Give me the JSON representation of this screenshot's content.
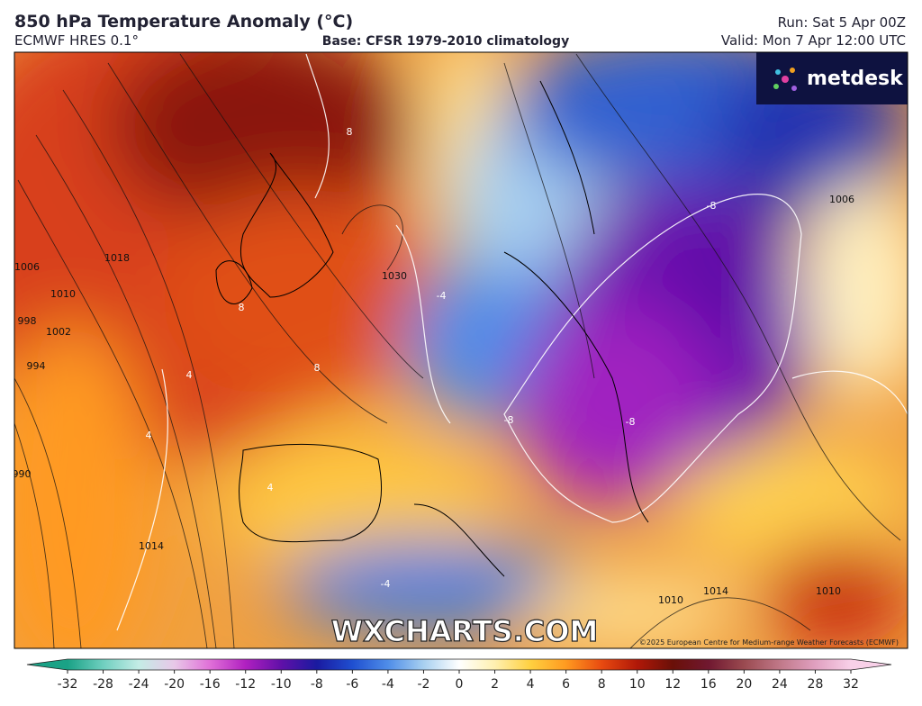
{
  "header": {
    "title": "850 hPa Temperature Anomaly (°C)",
    "model": "ECMWF HRES 0.1°",
    "base": "Base: CFSR 1979-2010 climatology",
    "run": "Run: Sat 5 Apr 00Z",
    "valid": "Valid: Mon 7 Apr 12:00 UTC"
  },
  "logo": "metdesk",
  "watermark": "WXCHARTS.COM",
  "copyright": "©2025 European Centre for Medium-range Weather Forecasts (ECMWF)",
  "contour_labels": [
    "1006",
    "1010",
    "1018",
    "998",
    "1002",
    "994",
    "990",
    "1014",
    "1030",
    "1006",
    "1014",
    "1010",
    "1010",
    "8",
    "8",
    "8",
    "4",
    "4",
    "4",
    "-4",
    "-4",
    "-8",
    "-8",
    "-8"
  ],
  "colorbar": {
    "ticks": [
      -32,
      -28,
      -24,
      -20,
      -16,
      -12,
      -10,
      -8,
      -6,
      -4,
      -2,
      0,
      2,
      4,
      6,
      8,
      10,
      12,
      16,
      20,
      24,
      28,
      32
    ],
    "colors": [
      "#1aa286",
      "#6fcfbf",
      "#c4ece6",
      "#e8c8e8",
      "#e070d8",
      "#b020c0",
      "#6010a8",
      "#1a1aa0",
      "#1f4fd0",
      "#4f8de8",
      "#a8d0f0",
      "#ffffff",
      "#fff0b0",
      "#ffd040",
      "#ff9a20",
      "#e84a10",
      "#b01808",
      "#6a1008",
      "#701830",
      "#9a4a50",
      "#c07888",
      "#e0a0c0",
      "#f8d0e8"
    ]
  }
}
